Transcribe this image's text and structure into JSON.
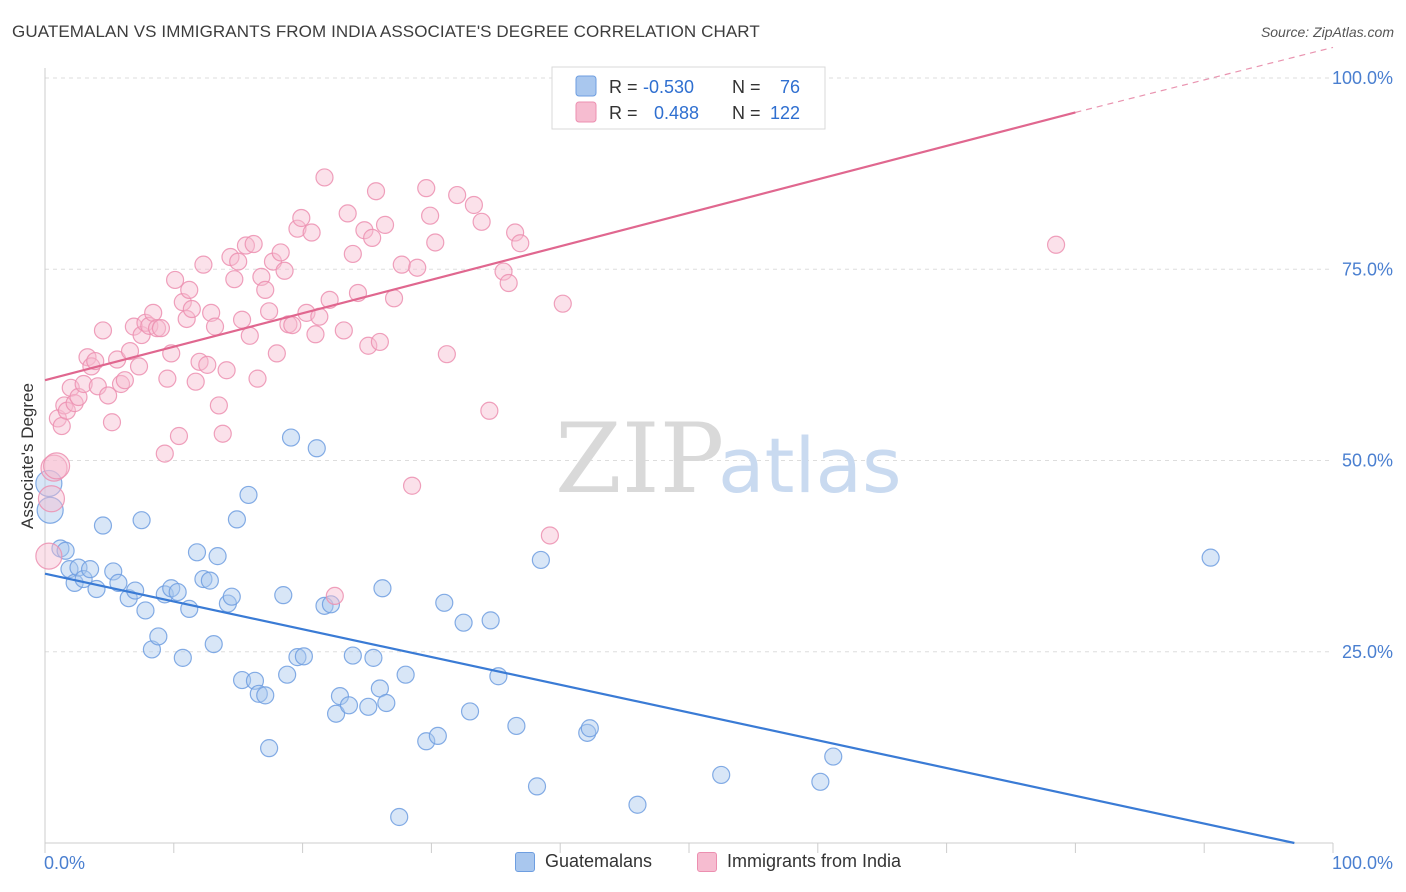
{
  "title": "GUATEMALAN VS IMMIGRANTS FROM INDIA ASSOCIATE'S DEGREE CORRELATION CHART",
  "source": "Source: ZipAtlas.com",
  "watermark": {
    "zip": "ZIP",
    "atlas": "atlas"
  },
  "colors": {
    "blue_fill": "#a9c7ee",
    "blue_stroke": "#6e9ee0",
    "blue_line": "#3a7bd5",
    "pink_fill": "#f6bcd0",
    "pink_stroke": "#ec8fb0",
    "pink_line": "#e0678f",
    "tick_label": "#4a7fd0",
    "grid": "#dddddd"
  },
  "stats_legend": {
    "rows": [
      {
        "r_label": "R =",
        "r_value": "-0.530",
        "n_label": "N =",
        "n_value": "76"
      },
      {
        "r_label": "R =",
        "r_value": "0.488",
        "n_label": "N =",
        "n_value": "122"
      }
    ]
  },
  "chart_data": {
    "type": "scatter",
    "title": "GUATEMALAN VS IMMIGRANTS FROM INDIA ASSOCIATE'S DEGREE CORRELATION CHART",
    "xlabel": "",
    "ylabel": "Associate's Degree",
    "xlim": [
      0,
      100
    ],
    "ylim": [
      0,
      100
    ],
    "x_tick_labels": [
      "0.0%",
      "100.0%"
    ],
    "y_ticks": [
      25,
      50,
      75,
      100
    ],
    "y_tick_labels": [
      "25.0%",
      "50.0%",
      "75.0%",
      "100.0%"
    ],
    "grid": true,
    "legend_position": "bottom",
    "series": [
      {
        "name": "Guatemalans",
        "color": "#a9c7ee",
        "trend": {
          "x": [
            0,
            97
          ],
          "y": [
            35.2,
            0
          ]
        },
        "points": [
          [
            0.3,
            47
          ],
          [
            0.4,
            43.5
          ],
          [
            1.2,
            38.5
          ],
          [
            1.6,
            38.2
          ],
          [
            1.9,
            35.8
          ],
          [
            2.3,
            34
          ],
          [
            2.6,
            36
          ],
          [
            3,
            34.5
          ],
          [
            3.5,
            35.8
          ],
          [
            4,
            33.2
          ],
          [
            4.5,
            41.5
          ],
          [
            5.3,
            35.5
          ],
          [
            5.7,
            34
          ],
          [
            6.5,
            32
          ],
          [
            7,
            33
          ],
          [
            7.5,
            42.2
          ],
          [
            7.8,
            30.4
          ],
          [
            8.3,
            25.3
          ],
          [
            8.8,
            27
          ],
          [
            9.3,
            32.5
          ],
          [
            9.8,
            33.3
          ],
          [
            10.3,
            32.8
          ],
          [
            10.7,
            24.2
          ],
          [
            11.2,
            30.6
          ],
          [
            11.8,
            38
          ],
          [
            12.3,
            34.5
          ],
          [
            12.8,
            34.3
          ],
          [
            13.1,
            26
          ],
          [
            13.4,
            37.5
          ],
          [
            14.2,
            31.3
          ],
          [
            14.5,
            32.2
          ],
          [
            14.9,
            42.3
          ],
          [
            15.3,
            21.3
          ],
          [
            15.8,
            45.5
          ],
          [
            16.3,
            21.2
          ],
          [
            16.6,
            19.5
          ],
          [
            17.1,
            19.3
          ],
          [
            17.4,
            12.4
          ],
          [
            18.5,
            32.4
          ],
          [
            18.8,
            22
          ],
          [
            19.1,
            53
          ],
          [
            19.6,
            24.3
          ],
          [
            20.1,
            24.4
          ],
          [
            21.1,
            51.6
          ],
          [
            21.7,
            31
          ],
          [
            22.2,
            31.2
          ],
          [
            22.6,
            16.9
          ],
          [
            22.9,
            19.2
          ],
          [
            23.6,
            18
          ],
          [
            23.9,
            24.5
          ],
          [
            25.1,
            17.8
          ],
          [
            25.5,
            24.2
          ],
          [
            26,
            20.2
          ],
          [
            26.2,
            33.3
          ],
          [
            26.5,
            18.3
          ],
          [
            27.5,
            3.4
          ],
          [
            28,
            22
          ],
          [
            29.6,
            13.3
          ],
          [
            30.5,
            14
          ],
          [
            31,
            31.4
          ],
          [
            32.5,
            28.8
          ],
          [
            33,
            17.2
          ],
          [
            34.6,
            29.1
          ],
          [
            35.2,
            21.8
          ],
          [
            36.6,
            15.3
          ],
          [
            38.2,
            7.4
          ],
          [
            38.5,
            37
          ],
          [
            42.1,
            14.4
          ],
          [
            42.3,
            15
          ],
          [
            46,
            5
          ],
          [
            52.5,
            8.9
          ],
          [
            60.2,
            8
          ],
          [
            61.2,
            11.3
          ],
          [
            90.5,
            37.3
          ]
        ]
      },
      {
        "name": "Immigrants from India",
        "color": "#f6bcd0",
        "trend": {
          "x": [
            0,
            80
          ],
          "y": [
            60.5,
            95.5
          ],
          "dashed_to": {
            "x": 100,
            "y": 104
          }
        },
        "points": [
          [
            0.3,
            37.5
          ],
          [
            0.5,
            45
          ],
          [
            0.7,
            49
          ],
          [
            0.9,
            49.3
          ],
          [
            1,
            55.5
          ],
          [
            1.3,
            54.5
          ],
          [
            1.5,
            57.2
          ],
          [
            1.7,
            56.5
          ],
          [
            2,
            59.5
          ],
          [
            2.3,
            57.5
          ],
          [
            2.6,
            58.3
          ],
          [
            3,
            60
          ],
          [
            3.3,
            63.5
          ],
          [
            3.6,
            62.3
          ],
          [
            3.9,
            63
          ],
          [
            4.1,
            59.7
          ],
          [
            4.5,
            67
          ],
          [
            4.9,
            58.5
          ],
          [
            5.2,
            55
          ],
          [
            5.6,
            63.2
          ],
          [
            5.9,
            60
          ],
          [
            6.2,
            60.5
          ],
          [
            6.6,
            64.3
          ],
          [
            6.9,
            67.5
          ],
          [
            7.3,
            62.3
          ],
          [
            7.5,
            66.4
          ],
          [
            7.8,
            68
          ],
          [
            8.1,
            67.6
          ],
          [
            8.4,
            69.3
          ],
          [
            8.7,
            67.3
          ],
          [
            9,
            67.3
          ],
          [
            9.3,
            50.9
          ],
          [
            9.5,
            60.7
          ],
          [
            9.8,
            64
          ],
          [
            10.1,
            73.6
          ],
          [
            10.4,
            53.2
          ],
          [
            10.7,
            70.7
          ],
          [
            11,
            68.5
          ],
          [
            11.2,
            72.3
          ],
          [
            11.4,
            69.8
          ],
          [
            11.7,
            60.3
          ],
          [
            12,
            62.9
          ],
          [
            12.3,
            75.6
          ],
          [
            12.6,
            62.5
          ],
          [
            12.9,
            69.3
          ],
          [
            13.2,
            67.5
          ],
          [
            13.5,
            57.2
          ],
          [
            13.8,
            53.5
          ],
          [
            14.1,
            61.8
          ],
          [
            14.4,
            76.6
          ],
          [
            14.7,
            73.7
          ],
          [
            15,
            76
          ],
          [
            15.3,
            68.4
          ],
          [
            15.6,
            78.1
          ],
          [
            15.9,
            66.3
          ],
          [
            16.2,
            78.3
          ],
          [
            16.5,
            60.7
          ],
          [
            16.8,
            74
          ],
          [
            17.1,
            72.3
          ],
          [
            17.4,
            69.5
          ],
          [
            17.7,
            76
          ],
          [
            18,
            64
          ],
          [
            18.3,
            77.2
          ],
          [
            18.6,
            74.8
          ],
          [
            18.9,
            67.8
          ],
          [
            19.2,
            67.7
          ],
          [
            19.6,
            80.3
          ],
          [
            19.9,
            81.7
          ],
          [
            20.3,
            69.3
          ],
          [
            20.7,
            79.8
          ],
          [
            21,
            66.5
          ],
          [
            21.3,
            68.8
          ],
          [
            21.7,
            87
          ],
          [
            22.1,
            71
          ],
          [
            22.5,
            32.3
          ],
          [
            23.2,
            67
          ],
          [
            23.5,
            82.3
          ],
          [
            23.9,
            77
          ],
          [
            24.3,
            71.9
          ],
          [
            24.8,
            80.1
          ],
          [
            25.1,
            65
          ],
          [
            25.4,
            79.1
          ],
          [
            25.7,
            85.2
          ],
          [
            26,
            65.5
          ],
          [
            26.4,
            80.8
          ],
          [
            27.1,
            71.2
          ],
          [
            27.7,
            75.6
          ],
          [
            28.5,
            46.7
          ],
          [
            28.9,
            75.2
          ],
          [
            29.6,
            85.6
          ],
          [
            29.9,
            82
          ],
          [
            30.3,
            78.5
          ],
          [
            31.2,
            63.9
          ],
          [
            32,
            84.7
          ],
          [
            33.3,
            83.4
          ],
          [
            33.9,
            81.2
          ],
          [
            34.5,
            56.5
          ],
          [
            35.6,
            74.7
          ],
          [
            36,
            73.2
          ],
          [
            36.5,
            79.8
          ],
          [
            36.9,
            78.4
          ],
          [
            39.2,
            40.2
          ],
          [
            40.2,
            70.5
          ],
          [
            78.5,
            78.2
          ]
        ]
      }
    ]
  },
  "legend_bottom": {
    "items": [
      {
        "label": "Guatemalans"
      },
      {
        "label": "Immigrants from India"
      }
    ]
  }
}
